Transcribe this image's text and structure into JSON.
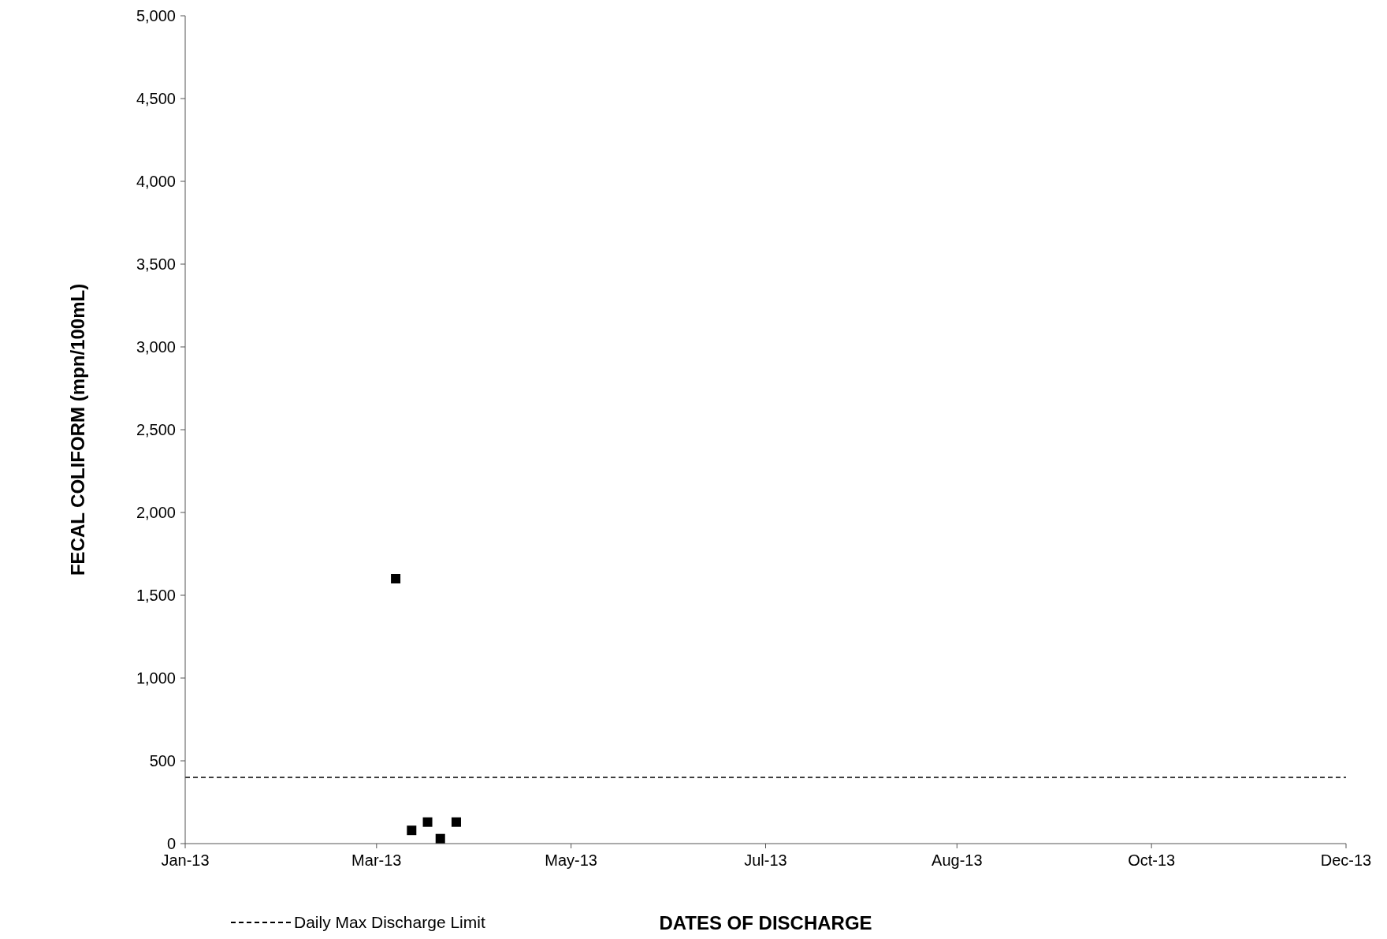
{
  "chart_data": {
    "type": "scatter",
    "xlabel": "DATES OF DISCHARGE",
    "ylabel": "FECAL COLIFORM (mpn/100mL)",
    "xlim": [
      "2013-01-01",
      "2013-12-31"
    ],
    "xticks": [
      {
        "value": "2013-01-01",
        "label": "Jan-13"
      },
      {
        "value": "2013-03-02",
        "label": "Mar-13"
      },
      {
        "value": "2013-05-02",
        "label": "May-13"
      },
      {
        "value": "2013-07-02",
        "label": "Jul-13"
      },
      {
        "value": "2013-08-31",
        "label": "Aug-13"
      },
      {
        "value": "2013-10-31",
        "label": "Oct-13"
      },
      {
        "value": "2013-12-31",
        "label": "Dec-13"
      }
    ],
    "ylim": [
      0,
      5000
    ],
    "yticks": [
      0,
      500,
      {
        "value": 1000,
        "label": "1,000"
      },
      {
        "value": 1500,
        "label": "1,500"
      },
      {
        "value": 2000,
        "label": "2,000"
      },
      {
        "value": 2500,
        "label": "2,500"
      },
      {
        "value": 3000,
        "label": "3,000"
      },
      {
        "value": 3500,
        "label": "3,500"
      },
      {
        "value": 4000,
        "label": "4,000"
      },
      {
        "value": 4500,
        "label": "4,500"
      },
      {
        "value": 5000,
        "label": "5,000"
      }
    ],
    "grid": false,
    "legend": "bottom left",
    "marker": "square",
    "series": [
      {
        "color": "#000000",
        "x": [
          "2013-03-08",
          "2013-03-13",
          "2013-03-18",
          "2013-03-22",
          "2013-03-27"
        ],
        "values": [
          1600,
          80,
          130,
          30,
          130
        ]
      },
      {
        "type": "line",
        "name": "Daily Max Discharge Limit",
        "color": "#000000",
        "line_style": "dashed",
        "marker": "none",
        "x": [
          "2013-01-01",
          "2013-12-31"
        ],
        "values": [
          400,
          400
        ]
      }
    ]
  }
}
